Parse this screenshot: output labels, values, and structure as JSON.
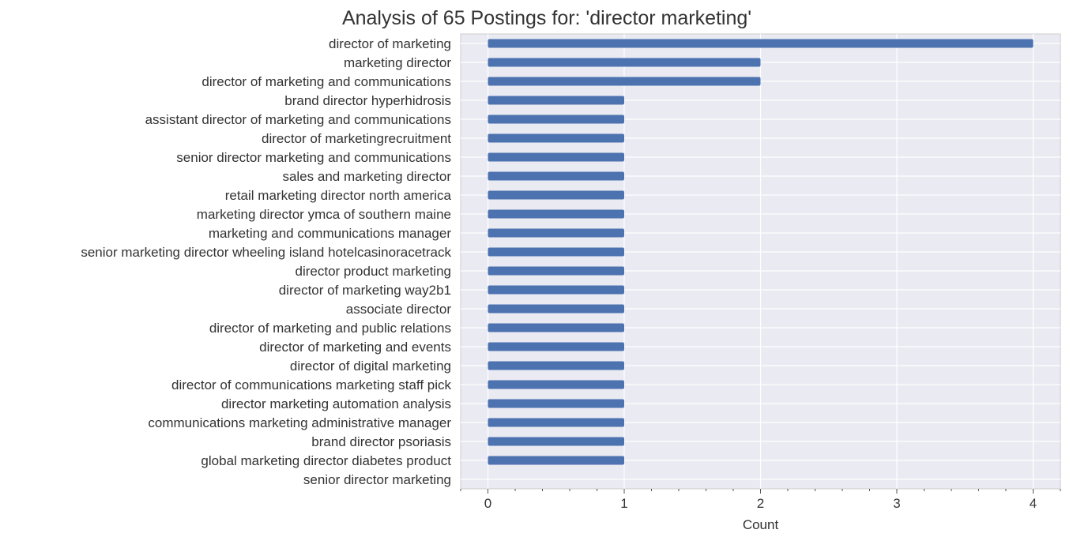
{
  "chart_data": {
    "type": "bar",
    "orientation": "horizontal",
    "title": "Analysis of 65 Postings for: 'director marketing'",
    "xlabel": "Count",
    "ylabel": "",
    "xlim": [
      -0.2,
      4.2
    ],
    "xticks": [
      0,
      1,
      2,
      3,
      4
    ],
    "grid": true,
    "bar_color": "#4c72b0",
    "background_color": "#eaeaf2",
    "categories": [
      "director of marketing",
      "marketing director",
      "director of marketing and communications",
      "brand director hyperhidrosis",
      "assistant director of marketing and communications",
      "director of marketingrecruitment",
      "senior director marketing and communications",
      "sales and marketing director",
      "retail marketing director north america",
      "marketing director  ymca of southern maine",
      "marketing and communications manager",
      "senior marketing director  wheeling island hotelcasinoracetrack",
      "director product marketing",
      "director of marketing way2b1",
      "associate director",
      "director of marketing and public relations",
      "director of marketing and events",
      "director of digital marketing",
      "director of communications marketing staff pick",
      "director marketing automation  analysis",
      "communications  marketing administrative manager",
      "brand director psoriasis",
      "global marketing director  diabetes product",
      "senior director marketing"
    ],
    "values": [
      4,
      2,
      2,
      1,
      1,
      1,
      1,
      1,
      1,
      1,
      1,
      1,
      1,
      1,
      1,
      1,
      1,
      1,
      1,
      1,
      1,
      1,
      1,
      0
    ]
  }
}
